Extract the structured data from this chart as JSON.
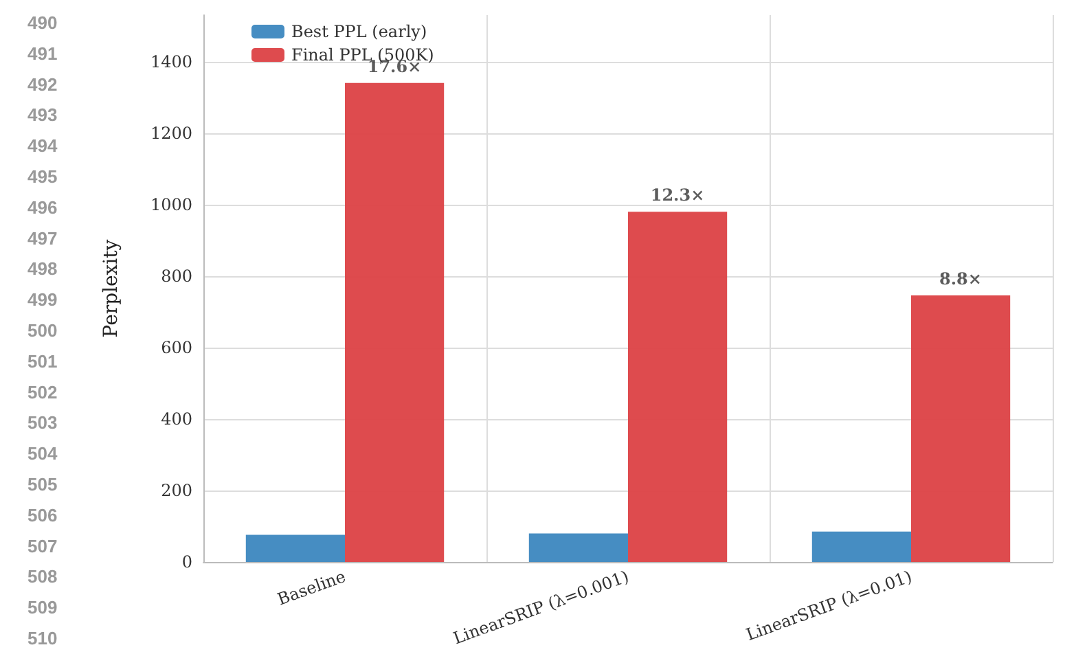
{
  "chart_data": {
    "type": "bar",
    "ylabel": "Perplexity",
    "categories": [
      "Baseline",
      "LinearSRIP (λ=0.001)",
      "LinearSRIP (λ=0.01)"
    ],
    "series": [
      {
        "name": "Best PPL (early)",
        "color": "#3c87bf",
        "values": [
          76,
          80,
          85
        ]
      },
      {
        "name": "Final PPL (500K)",
        "color": "#dc4144",
        "values": [
          1340,
          980,
          746
        ]
      }
    ],
    "ylim": [
      0,
      1530
    ],
    "yticks": [
      0,
      200,
      400,
      600,
      800,
      1000,
      1200,
      1400
    ],
    "grid": true,
    "legend": "top left",
    "annotations": [
      {
        "text": "17.6×",
        "x": "Baseline",
        "y": 1340
      },
      {
        "text": "12.3×",
        "x": "LinearSRIP (λ=0.001)",
        "y": 980
      },
      {
        "text": "8.8×",
        "x": "LinearSRIP (λ=0.01)",
        "y": 746
      },
      "490",
      "491",
      "492",
      "493",
      "494",
      "495",
      "496",
      "497",
      "498",
      "499",
      "500",
      "501",
      "502",
      "503",
      "504",
      "505",
      "506",
      "507",
      "508",
      "509",
      "510"
    ]
  }
}
